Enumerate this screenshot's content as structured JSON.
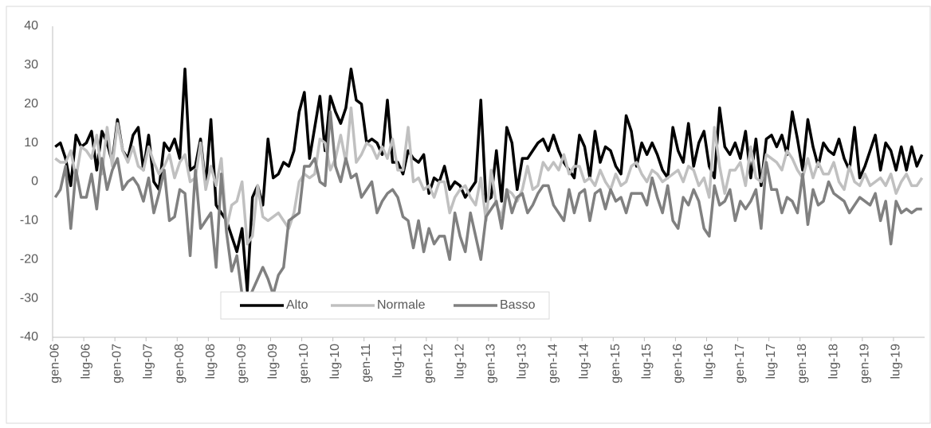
{
  "chart_data": {
    "type": "line",
    "categories": [
      "gen-06",
      null,
      null,
      null,
      null,
      null,
      "lug-06",
      null,
      null,
      null,
      null,
      null,
      "gen-07",
      null,
      null,
      null,
      null,
      null,
      "lug-07",
      null,
      null,
      null,
      null,
      null,
      "gen-08",
      null,
      null,
      null,
      null,
      null,
      "lug-08",
      null,
      null,
      null,
      null,
      null,
      "gen-09",
      null,
      null,
      null,
      null,
      null,
      "lug-09",
      null,
      null,
      null,
      null,
      null,
      "gen-10",
      null,
      null,
      null,
      null,
      null,
      "lug-10",
      null,
      null,
      null,
      null,
      null,
      "gen-11",
      null,
      null,
      null,
      null,
      null,
      "lug-11",
      null,
      null,
      null,
      null,
      null,
      "gen-12",
      null,
      null,
      null,
      null,
      null,
      "lug-12",
      null,
      null,
      null,
      null,
      null,
      "gen-13",
      null,
      null,
      null,
      null,
      null,
      "lug-13",
      null,
      null,
      null,
      null,
      null,
      "gen-14",
      null,
      null,
      null,
      null,
      null,
      "lug-14",
      null,
      null,
      null,
      null,
      null,
      "gen-15",
      null,
      null,
      null,
      null,
      null,
      "lug-15",
      null,
      null,
      null,
      null,
      null,
      "gen-16",
      null,
      null,
      null,
      null,
      null,
      "lug-16",
      null,
      null,
      null,
      null,
      null,
      "gen-17",
      null,
      null,
      null,
      null,
      null,
      "lug-17",
      null,
      null,
      null,
      null,
      null,
      "gen-18",
      null,
      null,
      null,
      null,
      null,
      "lug-18",
      null,
      null,
      null,
      null,
      null,
      "gen-19",
      null,
      null,
      null,
      null,
      null,
      "lug-19",
      null,
      null,
      null,
      null,
      null
    ],
    "series": [
      {
        "name": "Alto",
        "color": "#000000",
        "values": [
          9,
          10,
          6,
          -1,
          12,
          9,
          10,
          13,
          3,
          13,
          10,
          5,
          16,
          8,
          6,
          12,
          14,
          3,
          12,
          0,
          -2,
          10,
          8,
          11,
          6,
          29,
          3,
          4,
          11,
          -1,
          16,
          -6,
          -8,
          -10,
          -14,
          -18,
          -12,
          -28,
          -4,
          -1,
          -6,
          11,
          1,
          2,
          5,
          4,
          8,
          18,
          23,
          6,
          14,
          22,
          8,
          22,
          18,
          15,
          19,
          29,
          21,
          20,
          10,
          11,
          10,
          7,
          21,
          5,
          5,
          2,
          8,
          6,
          5,
          7,
          -3,
          1,
          0,
          4,
          -2,
          0,
          -1,
          -4,
          -2,
          0,
          21,
          -5,
          -4,
          8,
          -5,
          14,
          10,
          -2,
          6,
          6,
          8,
          10,
          11,
          8,
          12,
          8,
          5,
          3,
          1,
          12,
          9,
          1,
          13,
          5,
          9,
          8,
          4,
          2,
          17,
          13,
          4,
          10,
          7,
          10,
          7,
          3,
          1,
          14,
          8,
          5,
          15,
          4,
          10,
          13,
          4,
          1,
          19,
          9,
          7,
          10,
          6,
          13,
          1,
          11,
          -1,
          11,
          12,
          9,
          12,
          7,
          18,
          11,
          3,
          16,
          9,
          4,
          10,
          8,
          7,
          11,
          6,
          3,
          14,
          1,
          4,
          8,
          12,
          3,
          10,
          8,
          3,
          9,
          3,
          9,
          4,
          7
        ]
      },
      {
        "name": "Normale",
        "color": "#c0c0c0",
        "values": [
          6,
          5,
          5,
          8,
          1,
          9,
          8,
          6,
          12,
          2,
          14,
          4,
          15,
          8,
          5,
          9,
          4,
          3,
          9,
          5,
          2,
          4,
          7,
          1,
          5,
          7,
          0,
          1,
          10,
          -2,
          4,
          -1,
          6,
          -12,
          -6,
          -5,
          0,
          -16,
          -14,
          -1,
          -9,
          -10,
          -9,
          -8,
          -10,
          -12,
          -8,
          0,
          2,
          1,
          2,
          11,
          10,
          3,
          6,
          12,
          5,
          19,
          5,
          7,
          10,
          9,
          6,
          9,
          6,
          11,
          3,
          3,
          14,
          0,
          1,
          -2,
          -1,
          -4,
          0,
          0,
          -8,
          -4,
          -2,
          -1,
          -4,
          -6,
          1,
          -10,
          3,
          -6,
          -9,
          -2,
          -3,
          -5,
          -2,
          4,
          -2,
          -1,
          5,
          3,
          5,
          3,
          7,
          2,
          4,
          4,
          0,
          1,
          -1,
          3,
          0,
          -2,
          2,
          -1,
          0,
          4,
          5,
          2,
          0,
          3,
          2,
          0,
          1,
          2,
          3,
          0,
          4,
          3,
          -1,
          1,
          -4,
          14,
          4,
          -3,
          3,
          3,
          5,
          -1,
          9,
          1,
          0,
          7,
          6,
          5,
          3,
          8,
          6,
          3,
          1,
          6,
          1,
          5,
          2,
          2,
          5,
          0,
          -2,
          4,
          0,
          -1,
          2,
          -1,
          0,
          1,
          -1,
          2,
          -3,
          0,
          2,
          -1,
          -1,
          1
        ]
      },
      {
        "name": "Basso",
        "color": "#808080",
        "values": [
          -4,
          -2,
          4,
          -12,
          3,
          -4,
          -4,
          2,
          -7,
          6,
          -2,
          3,
          6,
          -2,
          0,
          1,
          -1,
          -5,
          1,
          -8,
          -3,
          3,
          -10,
          -9,
          -2,
          -3,
          -19,
          3,
          -12,
          -10,
          -8,
          -22,
          2,
          -13,
          -23,
          -19,
          -29,
          -31,
          -28,
          -25,
          -22,
          -25,
          -29,
          -24,
          -22,
          -10,
          -9,
          -8,
          4,
          4,
          6,
          0,
          -1,
          18,
          4,
          0,
          6,
          1,
          2,
          -4,
          -2,
          0,
          -8,
          -5,
          -3,
          -2,
          -4,
          -9,
          -10,
          -17,
          -10,
          -18,
          -12,
          -16,
          -14,
          -14,
          -20,
          -8,
          -14,
          -18,
          -8,
          -14,
          -20,
          -9,
          -7,
          -5,
          -12,
          -2,
          -8,
          -4,
          -3,
          -8,
          -6,
          -3,
          -1,
          -1,
          -6,
          -8,
          -10,
          -2,
          -8,
          -3,
          -2,
          -10,
          -3,
          -2,
          -7,
          -2,
          -5,
          -4,
          -8,
          -3,
          -3,
          -3,
          -6,
          1,
          -4,
          -8,
          -1,
          -10,
          -12,
          -4,
          -6,
          -2,
          -5,
          -12,
          -14,
          -1,
          -6,
          -5,
          -2,
          -10,
          -5,
          -7,
          -5,
          -2,
          -12,
          5,
          -2,
          -2,
          -8,
          -4,
          -5,
          -8,
          2,
          -11,
          -2,
          -6,
          -5,
          0,
          -3,
          -4,
          -5,
          -8,
          -6,
          -4,
          -5,
          -6,
          -3,
          -10,
          -5,
          -16,
          -5,
          -8,
          -7,
          -8,
          -7,
          -7
        ]
      }
    ],
    "ylim": [
      -40,
      40
    ],
    "yticks": [
      -40,
      -30,
      -20,
      -10,
      0,
      10,
      20,
      30,
      40
    ],
    "grid": false,
    "legend": "bottom"
  }
}
